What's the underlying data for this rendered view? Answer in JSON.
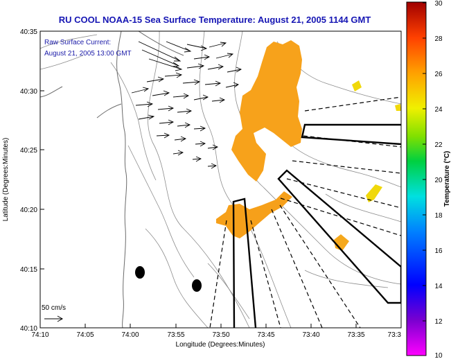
{
  "title": "RU COOL  NOAA-15  Sea Surface Temperature:  August 21, 2005 1144 GMT",
  "legend": {
    "line1": "Raw Surface Current:",
    "line2": "August 21, 2005 13:00 GMT",
    "scale_label": "50 cm/s"
  },
  "axes": {
    "xlabel": "Longitude (Degrees:Minutes)",
    "ylabel": "Latitude (Degrees:Minutes)",
    "x_ticks": [
      "74:10",
      "74:05",
      "74:00",
      "73:55",
      "73:50",
      "73:45",
      "73:40",
      "73:35",
      "73:3"
    ],
    "y_ticks": [
      "40:35",
      "40:30",
      "40:25",
      "40:20",
      "40:15",
      "40:10"
    ]
  },
  "colorbar": {
    "label": "Temperature (°C)",
    "ticks": [
      "30",
      "28",
      "26",
      "24",
      "22",
      "20",
      "18",
      "16",
      "14",
      "12",
      "10"
    ],
    "min": 10,
    "max": 30
  },
  "colors": {
    "title": "#1616b4",
    "sst_warm": "#f7a21b",
    "sst_yellow": "#f0d80a"
  }
}
